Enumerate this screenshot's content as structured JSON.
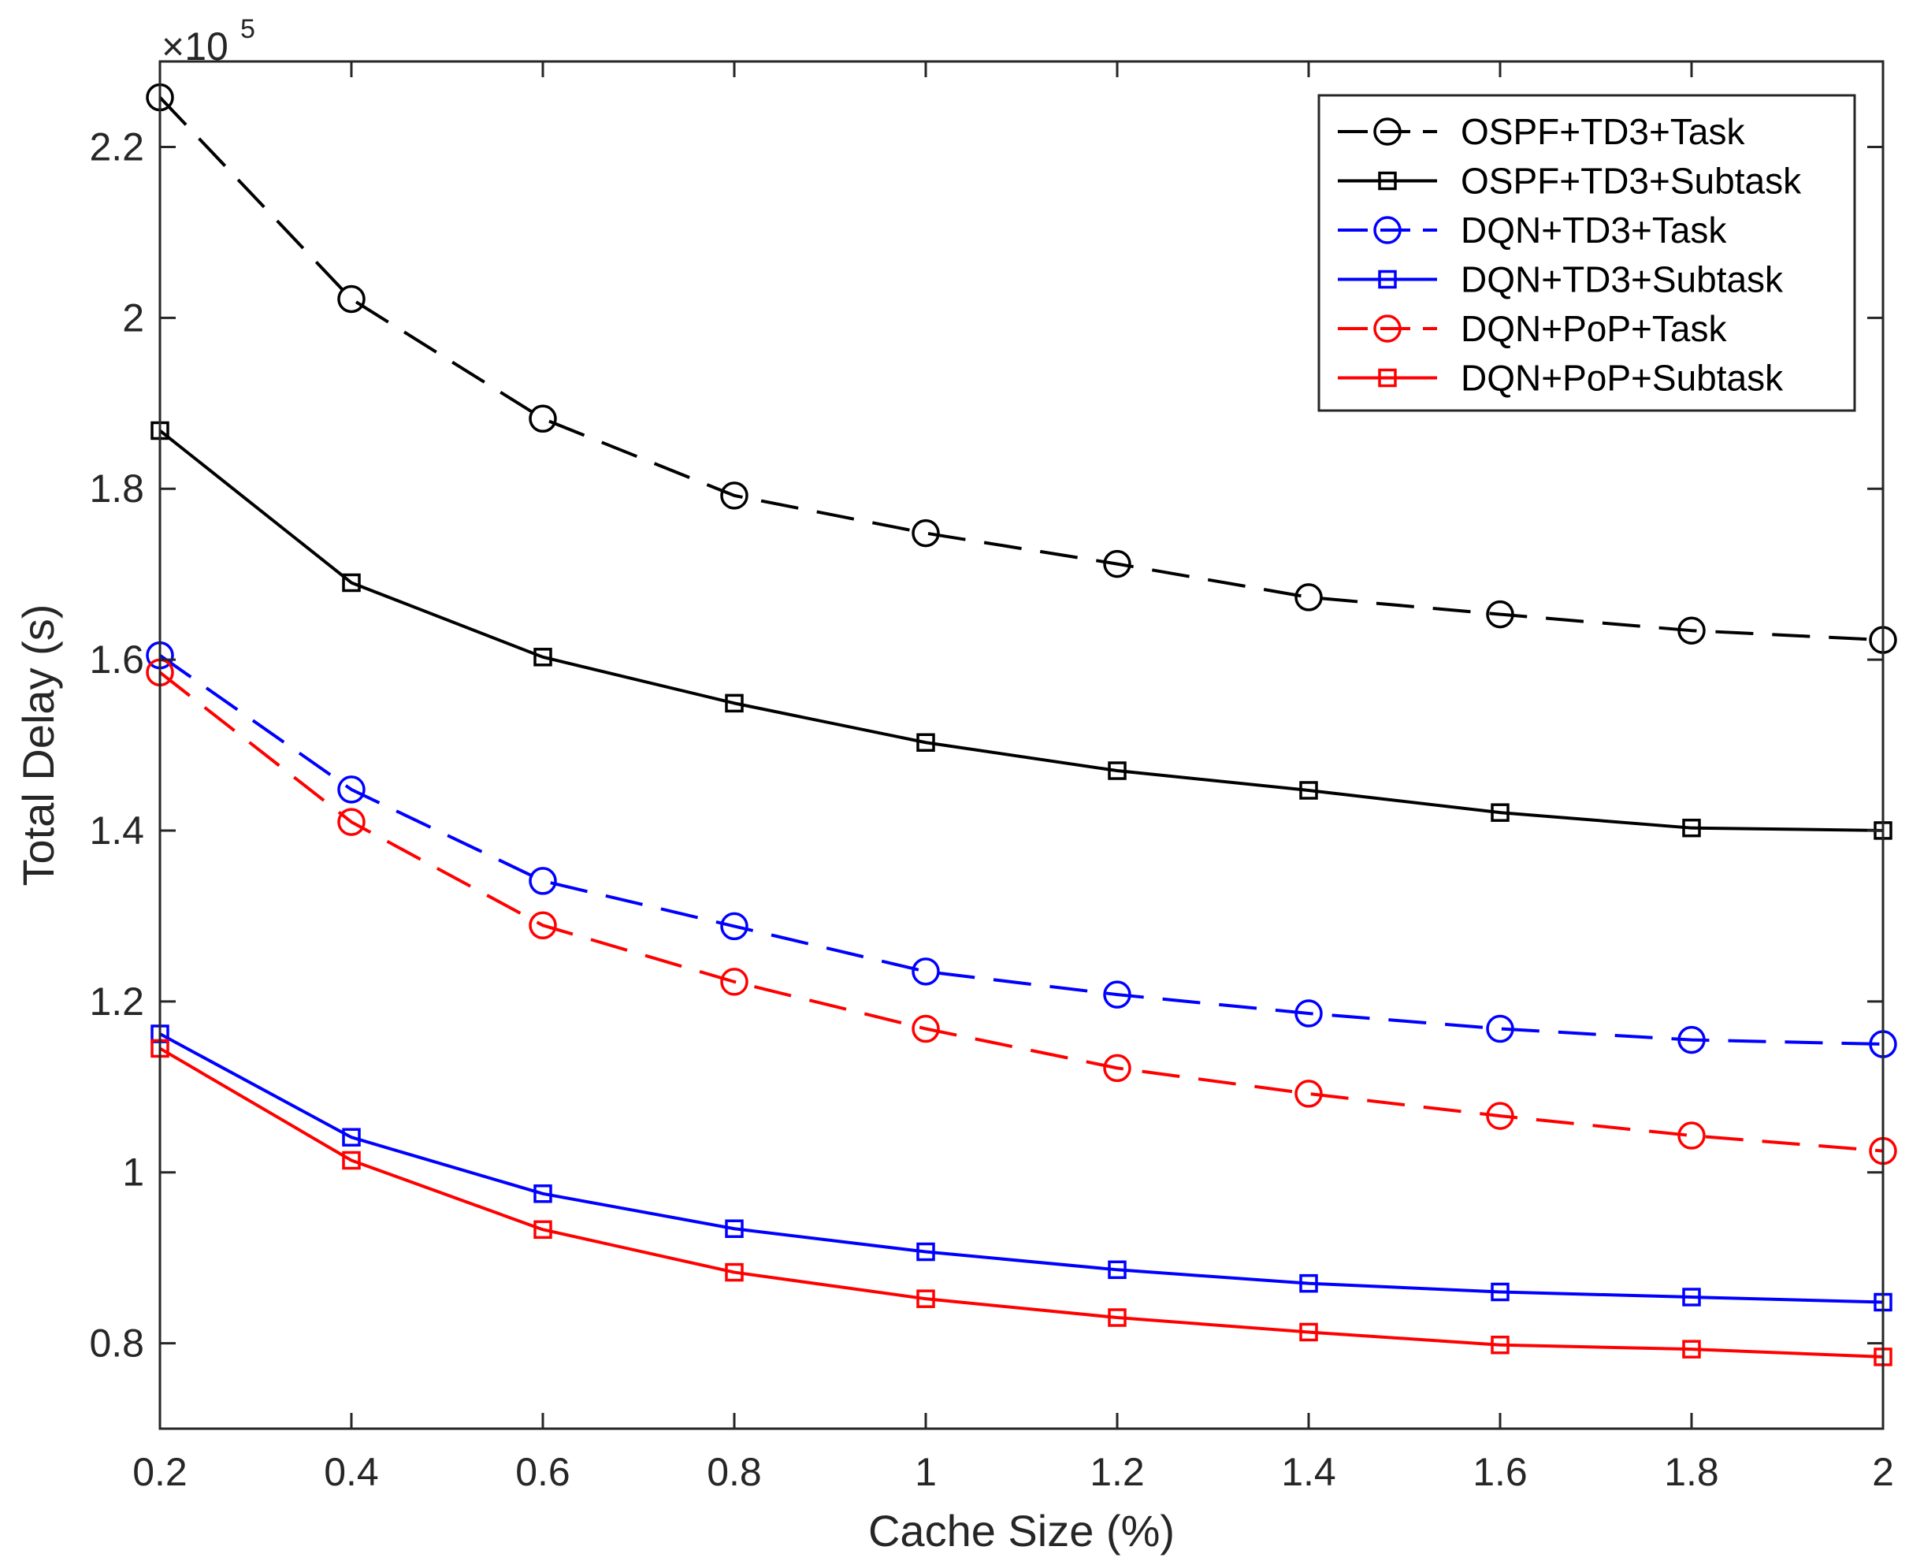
{
  "chart_data": {
    "type": "line",
    "title": "",
    "xlabel": "Cache Size (%)",
    "ylabel": "Total Delay (s)",
    "y_multiplier_label": "×10",
    "y_multiplier_exponent": "5",
    "x": [
      0.2,
      0.4,
      0.6,
      0.8,
      1.0,
      1.2,
      1.4,
      1.6,
      1.8,
      2.0
    ],
    "xlim": [
      0.2,
      2.0
    ],
    "ylim": [
      0.7,
      2.3
    ],
    "x_ticks": [
      0.2,
      0.4,
      0.6,
      0.8,
      1.0,
      1.2,
      1.4,
      1.6,
      1.8,
      2.0
    ],
    "x_tick_labels": [
      "0.2",
      "0.4",
      "0.6",
      "0.8",
      "1",
      "1.2",
      "1.4",
      "1.6",
      "1.8",
      "2"
    ],
    "y_ticks": [
      0.8,
      1.0,
      1.2,
      1.4,
      1.6,
      1.8,
      2.0,
      2.2
    ],
    "y_tick_labels": [
      "0.8",
      "1",
      "1.2",
      "1.4",
      "1.6",
      "1.8",
      "2",
      "2.2"
    ],
    "grid": false,
    "legend_position": "top-right",
    "series": [
      {
        "name": "OSPF+TD3+Task",
        "color": "#000000",
        "dash": "dashed",
        "marker": "circle",
        "values": [
          2.258,
          2.022,
          1.882,
          1.792,
          1.748,
          1.712,
          1.673,
          1.653,
          1.634,
          1.623
        ]
      },
      {
        "name": "OSPF+TD3+Subtask",
        "color": "#000000",
        "dash": "solid",
        "marker": "square",
        "values": [
          1.868,
          1.69,
          1.603,
          1.549,
          1.503,
          1.47,
          1.447,
          1.421,
          1.403,
          1.4
        ]
      },
      {
        "name": "DQN+TD3+Task",
        "color": "#0000ff",
        "dash": "dashed",
        "marker": "circle",
        "values": [
          1.605,
          1.448,
          1.341,
          1.288,
          1.235,
          1.208,
          1.186,
          1.168,
          1.155,
          1.15
        ]
      },
      {
        "name": "DQN+TD3+Subtask",
        "color": "#0000ff",
        "dash": "solid",
        "marker": "square",
        "values": [
          1.162,
          1.041,
          0.975,
          0.934,
          0.907,
          0.886,
          0.87,
          0.86,
          0.854,
          0.848
        ]
      },
      {
        "name": "DQN+PoP+Task",
        "color": "#ff0000",
        "dash": "dashed",
        "marker": "circle",
        "values": [
          1.585,
          1.41,
          1.289,
          1.223,
          1.168,
          1.122,
          1.092,
          1.066,
          1.043,
          1.025
        ]
      },
      {
        "name": "DQN+PoP+Subtask",
        "color": "#ff0000",
        "dash": "solid",
        "marker": "square",
        "values": [
          1.145,
          1.014,
          0.933,
          0.883,
          0.852,
          0.83,
          0.813,
          0.798,
          0.793,
          0.784
        ]
      }
    ]
  }
}
